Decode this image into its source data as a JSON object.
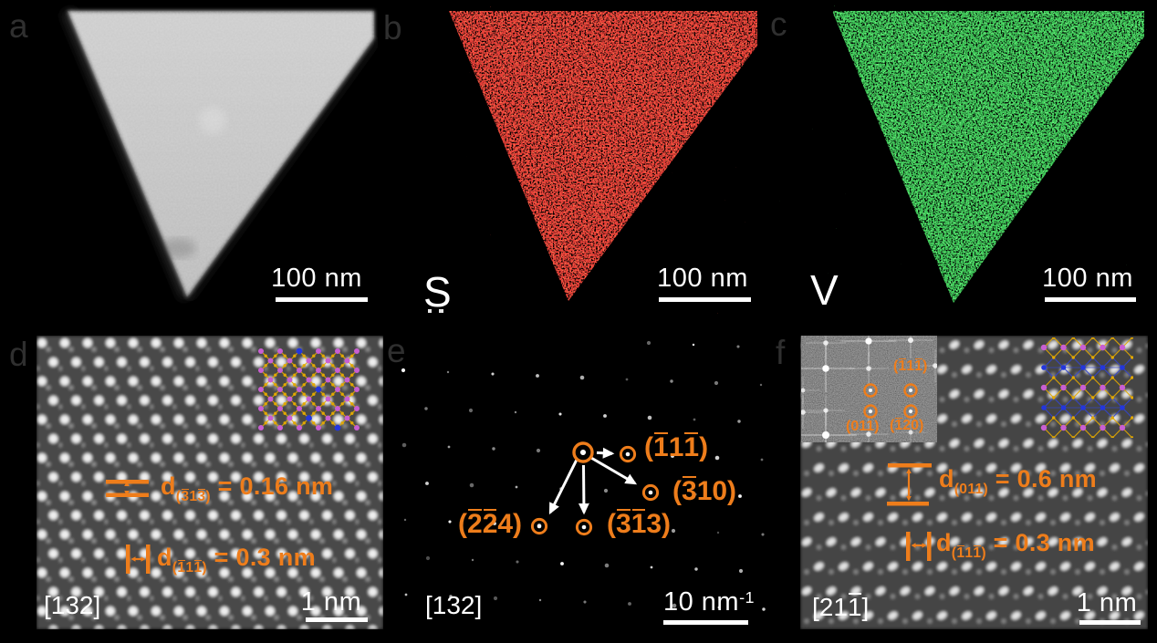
{
  "colors": {
    "background": "#000000",
    "annotation_orange": "#ee7d1b",
    "panel_letter": "#2f2f2f",
    "map_red": "#d11010",
    "map_green": "#1cc32a",
    "atom_gold": "#e2a800",
    "atom_magenta": "#c95fd2",
    "atom_blue": "#2336dd",
    "scalebar_white": "#ffffff"
  },
  "panels": {
    "a": {
      "letter": "a",
      "scale_bar": "100 nm"
    },
    "b": {
      "letter": "b",
      "element": "S",
      "scale_bar": "100 nm"
    },
    "c": {
      "letter": "c",
      "element": "V",
      "scale_bar": "100 nm"
    },
    "d": {
      "letter": "d",
      "zone_axis": "[132]",
      "scale_bar": "1 nm",
      "d1": "d_(3̄13̄)_ = 0.16 nm",
      "d2": "d_(1̄11̄)_ = 0.3 nm"
    },
    "e": {
      "letter": "e",
      "zone_axis": "[132]",
      "scale_bar": "10 nm^-1^",
      "spots": [
        "(1̄11̄)",
        "(3̄10)",
        "(2̄2̄4)",
        "(3̄1̄3)"
      ]
    },
    "f": {
      "letter": "f",
      "zone_axis": "[211̄]",
      "scale_bar": "1 nm",
      "d1": "d_(011)_ = 0.6 nm",
      "d2": "d_(1̄11̄)_ = 0.3 nm",
      "fft": [
        "(1̄11̄)",
        "(011)",
        "(1̄20)"
      ]
    }
  }
}
